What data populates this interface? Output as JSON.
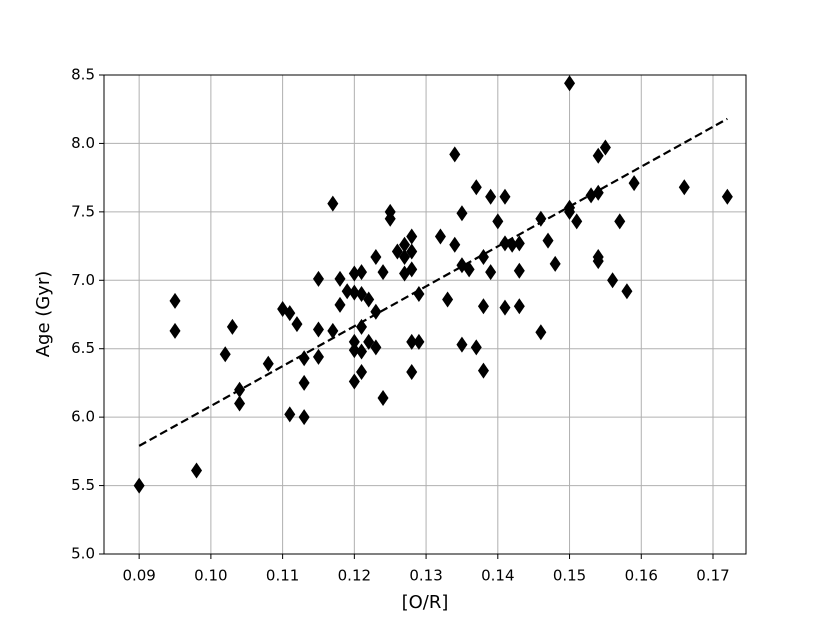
{
  "chart_data": {
    "type": "scatter",
    "xlabel": "[O/R]",
    "ylabel": "Age (Gyr)",
    "color": "#000000",
    "grid": true,
    "xlim": [
      0.0851,
      0.1746
    ],
    "ylim": [
      5.0,
      8.5
    ],
    "xticks": [
      0.09,
      {
        "value": 0.1,
        "label": "0.10"
      },
      0.11,
      0.12,
      0.13,
      0.14,
      0.15,
      0.16,
      0.17
    ],
    "yticks": [
      {
        "value": 5,
        "label": "5.0"
      },
      5.5,
      {
        "value": 6,
        "label": "6.0"
      },
      6.5,
      {
        "value": 7,
        "label": "7.0"
      },
      7.5,
      {
        "value": 8,
        "label": "8.0"
      },
      8.5
    ],
    "x": [
      0.09,
      0.095,
      0.095,
      0.098,
      0.102,
      0.103,
      0.104,
      0.104,
      0.108,
      0.11,
      0.111,
      0.111,
      0.112,
      0.113,
      0.113,
      0.113,
      0.115,
      0.115,
      0.115,
      0.117,
      0.117,
      0.118,
      0.118,
      0.119,
      0.12,
      0.12,
      0.12,
      0.12,
      0.12,
      0.121,
      0.121,
      0.121,
      0.121,
      0.121,
      0.122,
      0.122,
      0.123,
      0.123,
      0.123,
      0.124,
      0.124,
      0.125,
      0.125,
      0.126,
      0.127,
      0.127,
      0.127,
      0.128,
      0.128,
      0.128,
      0.128,
      0.128,
      0.129,
      0.129,
      0.132,
      0.133,
      0.134,
      0.134,
      0.135,
      0.135,
      0.135,
      0.136,
      0.137,
      0.137,
      0.138,
      0.138,
      0.138,
      0.139,
      0.139,
      0.14,
      0.141,
      0.141,
      0.141,
      0.142,
      0.143,
      0.143,
      0.143,
      0.146,
      0.146,
      0.147,
      0.148,
      0.15,
      0.15,
      0.15,
      0.151,
      0.153,
      0.154,
      0.154,
      0.154,
      0.154,
      0.155,
      0.156,
      0.157,
      0.158,
      0.159,
      0.166,
      0.172
    ],
    "y": [
      5.5,
      6.85,
      6.63,
      5.61,
      6.46,
      6.66,
      6.2,
      6.1,
      6.39,
      6.79,
      6.76,
      6.02,
      6.68,
      6.43,
      6.25,
      6.0,
      7.01,
      6.64,
      6.44,
      7.56,
      6.63,
      7.01,
      6.82,
      6.92,
      7.05,
      6.91,
      6.55,
      6.49,
      6.26,
      7.06,
      6.9,
      6.66,
      6.48,
      6.33,
      6.86,
      6.55,
      7.17,
      6.77,
      6.51,
      7.06,
      6.14,
      7.5,
      7.45,
      7.21,
      7.17,
      7.26,
      7.05,
      7.32,
      7.21,
      7.08,
      6.55,
      6.33,
      6.55,
      6.9,
      7.32,
      6.86,
      7.92,
      7.26,
      7.49,
      7.11,
      6.53,
      7.08,
      7.68,
      6.51,
      7.17,
      6.81,
      6.34,
      7.61,
      7.06,
      7.43,
      7.61,
      6.8,
      7.27,
      7.26,
      7.27,
      7.07,
      6.81,
      7.45,
      6.62,
      7.29,
      7.12,
      8.44,
      7.53,
      7.5,
      7.43,
      7.62,
      7.91,
      7.64,
      7.17,
      7.14,
      7.97,
      7.0,
      7.43,
      6.92,
      7.71,
      7.68,
      7.61
    ],
    "trend_line": {
      "x": [
        0.09,
        0.172
      ],
      "y": [
        5.79,
        8.18
      ]
    }
  }
}
